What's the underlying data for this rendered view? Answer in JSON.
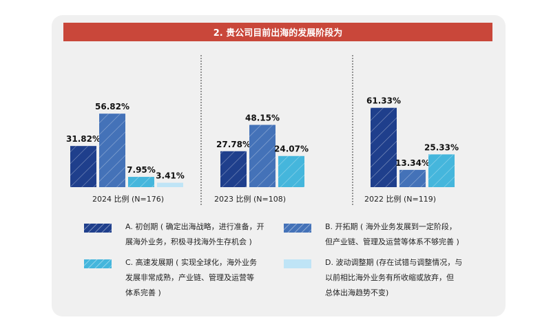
{
  "title": "2. 贵公司目前出海的发展阶段为",
  "colors": {
    "A": "#1f3f8c",
    "B": "#4472b8",
    "C": "#45b6dc",
    "D": "#bfe4f6",
    "title_bg": "#c9473a"
  },
  "chart_data": [
    {
      "type": "bar",
      "label": "2024 比例 (N=176)",
      "categories": [
        "A",
        "B",
        "C",
        "D"
      ],
      "values": [
        31.82,
        56.82,
        7.95,
        3.41
      ],
      "value_labels": [
        "31.82%",
        "56.82%",
        "7.95%",
        "3.41%"
      ]
    },
    {
      "type": "bar",
      "label": "2023 比例 (N=108)",
      "categories": [
        "A",
        "B",
        "C"
      ],
      "values": [
        27.78,
        48.15,
        24.07
      ],
      "value_labels": [
        "27.78%",
        "48.15%",
        "24.07%"
      ]
    },
    {
      "type": "bar",
      "label": "2022 比例 (N=119)",
      "categories": [
        "A",
        "B",
        "C"
      ],
      "values": [
        61.33,
        13.34,
        25.33
      ],
      "value_labels": [
        "61.33%",
        "13.34%",
        "25.33%"
      ]
    }
  ],
  "legend": {
    "A": [
      "A. 初创期 ( 确定出海战略，进行准备，开",
      "展海外业务，积极寻找海外生存机会 )"
    ],
    "B": [
      "B. 开拓期 ( 海外业务发展到一定阶段，",
      "但产业链、管理及运营等体系不够完善 )"
    ],
    "C": [
      "C. 高速发展期 ( 实现全球化，海外业务",
      "发展非常成熟，产业链、管理及运营等",
      "体系完善 )"
    ],
    "D": [
      "D. 波动调整期 (存在试错与调整情况，与",
      "以前相比海外业务有所收缩或放弃，但",
      "总体出海趋势不变)"
    ]
  }
}
